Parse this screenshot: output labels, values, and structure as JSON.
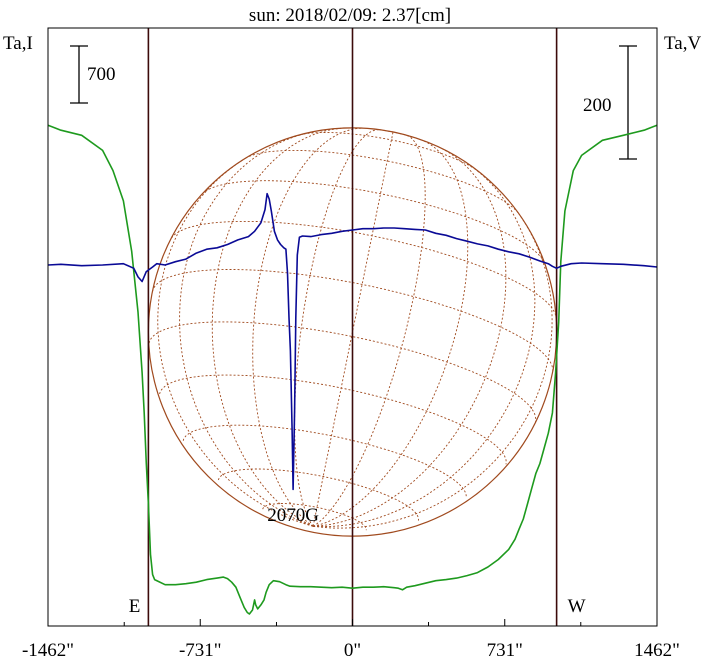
{
  "chart_data": {
    "type": "line",
    "title": "sun: 2018/02/09: 2.37[cm]",
    "left_axis_label": "Ta,I",
    "right_axis_label": "Ta,V",
    "left_scale_bar": "700",
    "right_scale_bar": "200",
    "x_ticks": [
      {
        "value": -1462,
        "label": "-1462\""
      },
      {
        "value": -731,
        "label": "-731\""
      },
      {
        "value": 0,
        "label": "0\""
      },
      {
        "value": 731,
        "label": "731\""
      },
      {
        "value": 1462,
        "label": "1462\""
      }
    ],
    "xlim": [
      -1462,
      1462
    ],
    "vertical_markers": [
      -731,
      0,
      731
    ],
    "limb_markers": [
      {
        "label": "E",
        "x": -980
      },
      {
        "label": "W",
        "x": 980
      }
    ],
    "annotation": {
      "label": "2070G",
      "x": -285
    },
    "grid": false,
    "solar_disk": {
      "center_x": 0,
      "radius": 980
    },
    "colors": {
      "stokes_i": "#1e9a1e",
      "stokes_v": "#0a0a96",
      "disk": "#a04a1e",
      "frame": "#3c0a0a"
    },
    "series": [
      {
        "key": "stokes_i",
        "color": "#1e9a1e",
        "points": [
          [
            -1462,
            97
          ],
          [
            -1400,
            96
          ],
          [
            -1300,
            95
          ],
          [
            -1200,
            92
          ],
          [
            -1150,
            88
          ],
          [
            -1100,
            82
          ],
          [
            -1060,
            72
          ],
          [
            -1030,
            60
          ],
          [
            -1010,
            48
          ],
          [
            -1000,
            40
          ],
          [
            -990,
            30
          ],
          [
            -980,
            22
          ],
          [
            -970,
            12
          ],
          [
            -960,
            8
          ],
          [
            -950,
            7
          ],
          [
            -900,
            6
          ],
          [
            -850,
            6
          ],
          [
            -800,
            6.2
          ],
          [
            -750,
            6.5
          ],
          [
            -700,
            7
          ],
          [
            -650,
            7.3
          ],
          [
            -620,
            7.5
          ],
          [
            -600,
            7.2
          ],
          [
            -580,
            6.5
          ],
          [
            -560,
            5.5
          ],
          [
            -540,
            3.5
          ],
          [
            -520,
            1.5
          ],
          [
            -505,
            0.5
          ],
          [
            -495,
            0.2
          ],
          [
            -480,
            1
          ],
          [
            -470,
            3
          ],
          [
            -465,
            2
          ],
          [
            -455,
            1.2
          ],
          [
            -440,
            2
          ],
          [
            -425,
            3
          ],
          [
            -415,
            4.5
          ],
          [
            -400,
            6
          ],
          [
            -380,
            6.8
          ],
          [
            -350,
            6.6
          ],
          [
            -320,
            6
          ],
          [
            -300,
            5.7
          ],
          [
            -250,
            5.6
          ],
          [
            -200,
            5.6
          ],
          [
            -150,
            5.5
          ],
          [
            -100,
            5.4
          ],
          [
            -50,
            5.5
          ],
          [
            0,
            5.3
          ],
          [
            50,
            5.5
          ],
          [
            100,
            5.5
          ],
          [
            150,
            5.6
          ],
          [
            200,
            5.4
          ],
          [
            220,
            5.3
          ],
          [
            240,
            5.0
          ],
          [
            260,
            5.5
          ],
          [
            300,
            5.8
          ],
          [
            350,
            6.3
          ],
          [
            400,
            6.8
          ],
          [
            450,
            7.0
          ],
          [
            500,
            7.3
          ],
          [
            550,
            7.8
          ],
          [
            600,
            8.4
          ],
          [
            650,
            9.5
          ],
          [
            700,
            11
          ],
          [
            750,
            13
          ],
          [
            780,
            15
          ],
          [
            800,
            17
          ],
          [
            820,
            19
          ],
          [
            840,
            22
          ],
          [
            860,
            25
          ],
          [
            880,
            28
          ],
          [
            900,
            30
          ],
          [
            920,
            33
          ],
          [
            940,
            36
          ],
          [
            960,
            40
          ],
          [
            975,
            48
          ],
          [
            990,
            58
          ],
          [
            1000,
            70
          ],
          [
            1020,
            80
          ],
          [
            1060,
            88
          ],
          [
            1100,
            91
          ],
          [
            1200,
            94
          ],
          [
            1300,
            95
          ],
          [
            1400,
            96
          ],
          [
            1462,
            97
          ]
        ]
      },
      {
        "key": "stokes_v",
        "color": "#0a0a96",
        "points": [
          [
            -1462,
            0
          ],
          [
            -1400,
            0.1
          ],
          [
            -1300,
            -0.1
          ],
          [
            -1200,
            0
          ],
          [
            -1100,
            0.2
          ],
          [
            -1050,
            -0.5
          ],
          [
            -1030,
            -1.8
          ],
          [
            -1010,
            -2.5
          ],
          [
            -990,
            -1.0
          ],
          [
            -960,
            -0.3
          ],
          [
            -940,
            0.2
          ],
          [
            -900,
            0
          ],
          [
            -850,
            0.5
          ],
          [
            -800,
            0.9
          ],
          [
            -750,
            1.8
          ],
          [
            -700,
            2.4
          ],
          [
            -650,
            2.6
          ],
          [
            -600,
            3.1
          ],
          [
            -550,
            3.8
          ],
          [
            -500,
            4.3
          ],
          [
            -470,
            5.1
          ],
          [
            -440,
            6.4
          ],
          [
            -420,
            8.4
          ],
          [
            -410,
            10.8
          ],
          [
            -400,
            10.0
          ],
          [
            -390,
            8.2
          ],
          [
            -375,
            5.1
          ],
          [
            -360,
            3.8
          ],
          [
            -345,
            3.1
          ],
          [
            -330,
            2.6
          ],
          [
            -320,
            2.4
          ],
          [
            -312,
            -1.2
          ],
          [
            -305,
            -8
          ],
          [
            -298,
            -13
          ],
          [
            -290,
            -25
          ],
          [
            -285,
            -34
          ],
          [
            -278,
            -22
          ],
          [
            -272,
            -8
          ],
          [
            -265,
            1.5
          ],
          [
            -255,
            4.2
          ],
          [
            -240,
            4.4
          ],
          [
            -200,
            4.3
          ],
          [
            -150,
            4.6
          ],
          [
            -100,
            4.8
          ],
          [
            -50,
            5.1
          ],
          [
            0,
            5.3
          ],
          [
            50,
            5.5
          ],
          [
            100,
            5.5
          ],
          [
            150,
            5.6
          ],
          [
            200,
            5.6
          ],
          [
            250,
            5.5
          ],
          [
            300,
            5.4
          ],
          [
            350,
            5.3
          ],
          [
            400,
            4.8
          ],
          [
            450,
            4.5
          ],
          [
            500,
            4.0
          ],
          [
            550,
            3.6
          ],
          [
            600,
            3.2
          ],
          [
            650,
            2.9
          ],
          [
            700,
            2.4
          ],
          [
            750,
            2.0
          ],
          [
            800,
            1.7
          ],
          [
            850,
            1.2
          ],
          [
            900,
            0.6
          ],
          [
            940,
            0.2
          ],
          [
            960,
            -0.2
          ],
          [
            980,
            -0.5
          ],
          [
            1000,
            -0.2
          ],
          [
            1050,
            0.2
          ],
          [
            1100,
            0.3
          ],
          [
            1200,
            0.2
          ],
          [
            1300,
            0.1
          ],
          [
            1400,
            -0.1
          ],
          [
            1462,
            -0.3
          ]
        ]
      }
    ]
  }
}
